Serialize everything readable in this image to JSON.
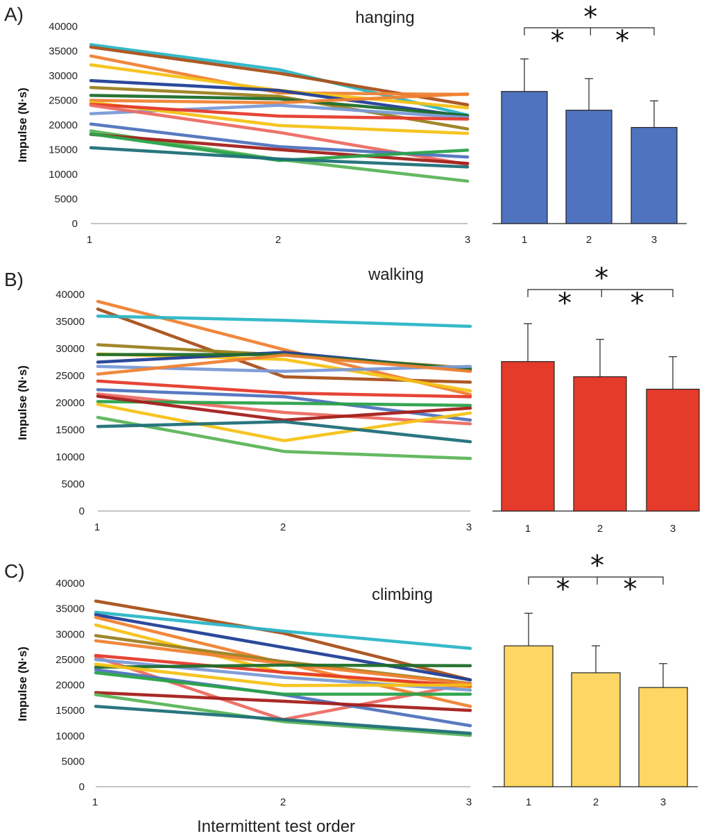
{
  "xlabel": "Intermittent test order",
  "panels": [
    {
      "label": "A)",
      "title": "hanging",
      "ylabel": "Impulse (N·s)",
      "yticks": [
        "0",
        "5000",
        "10000",
        "15000",
        "20000",
        "25000",
        "30000",
        "35000",
        "40000"
      ],
      "xticks": [
        "1",
        "2",
        "3"
      ],
      "bar_color": "#4f73be",
      "significance": [
        "*",
        "*",
        "*"
      ]
    },
    {
      "label": "B)",
      "title": "walking",
      "ylabel": "Impulse  (N·s)",
      "yticks": [
        "0",
        "5000",
        "10000",
        "15000",
        "20000",
        "25000",
        "30000",
        "35000",
        "40000"
      ],
      "xticks": [
        "1",
        "2",
        "3"
      ],
      "bar_color": "#e53b2b",
      "significance": [
        "*",
        "*",
        "*"
      ]
    },
    {
      "label": "C)",
      "title": "climbing",
      "ylabel": "Impulse (N·s)",
      "yticks": [
        "0",
        "5000",
        "10000",
        "15000",
        "20000",
        "25000",
        "30000",
        "35000",
        "40000"
      ],
      "xticks": [
        "1",
        "2",
        "3"
      ],
      "bar_color": "#fdd663",
      "significance": [
        "*",
        "*",
        "*"
      ]
    }
  ],
  "chart_data": [
    {
      "type": "line",
      "title": "hanging",
      "ylabel": "Impulse (N·s)",
      "xlabel": "Intermittent test order",
      "x": [
        1,
        2,
        3
      ],
      "ylim": [
        0,
        40000
      ],
      "series": [
        {
          "color": "#2bb6c6",
          "values": [
            36300,
            31200,
            22000
          ]
        },
        {
          "color": "#a9501a",
          "values": [
            35800,
            30500,
            24100
          ]
        },
        {
          "color": "#ef8233",
          "values": [
            34000,
            26500,
            26200
          ]
        },
        {
          "color": "#f5c217",
          "values": [
            32200,
            27000,
            23500
          ]
        },
        {
          "color": "#213f97",
          "values": [
            29000,
            27000,
            21700
          ]
        },
        {
          "color": "#9c8120",
          "values": [
            27600,
            25800,
            19200
          ]
        },
        {
          "color": "#1f6d2a",
          "values": [
            26000,
            25300,
            21900
          ]
        },
        {
          "color": "#ef8233",
          "values": [
            25000,
            24500,
            26300
          ]
        },
        {
          "color": "#7a9ad6",
          "values": [
            22300,
            24000,
            21500
          ]
        },
        {
          "color": "#f5c217",
          "values": [
            24600,
            19900,
            18300
          ]
        },
        {
          "color": "#e53b2b",
          "values": [
            24200,
            21800,
            21200
          ]
        },
        {
          "color": "#ec6b63",
          "values": [
            24000,
            18500,
            12000
          ]
        },
        {
          "color": "#4f73be",
          "values": [
            20200,
            15600,
            13500
          ]
        },
        {
          "color": "#5cb55a",
          "values": [
            18800,
            13000,
            8600
          ]
        },
        {
          "color": "#a4201b",
          "values": [
            18100,
            15000,
            12200
          ]
        },
        {
          "color": "#2aa24a",
          "values": [
            18200,
            12800,
            14900
          ]
        },
        {
          "color": "#1f6f78",
          "values": [
            15400,
            13100,
            11500
          ]
        }
      ]
    },
    {
      "type": "bar",
      "title": "hanging",
      "categories": [
        "1",
        "2",
        "3"
      ],
      "values": [
        26800,
        23000,
        19500
      ],
      "errors": [
        6600,
        6400,
        5400
      ],
      "ylim": [
        0,
        40000
      ],
      "significance": [
        [
          "1",
          "3",
          "*"
        ],
        [
          "1",
          "2",
          "*"
        ],
        [
          "2",
          "3",
          "*"
        ]
      ]
    },
    {
      "type": "line",
      "title": "walking",
      "ylabel": "Impulse  (N·s)",
      "xlabel": "Intermittent test order",
      "x": [
        1,
        2,
        3
      ],
      "ylim": [
        0,
        40000
      ],
      "series": [
        {
          "color": "#ef8233",
          "values": [
            38700,
            29800,
            21500
          ]
        },
        {
          "color": "#a9501a",
          "values": [
            37300,
            24800,
            23800
          ]
        },
        {
          "color": "#2bb6c6",
          "values": [
            36000,
            35200,
            34100
          ]
        },
        {
          "color": "#9c8120",
          "values": [
            30700,
            28800,
            26400
          ]
        },
        {
          "color": "#f5c217",
          "values": [
            29000,
            28000,
            22200
          ]
        },
        {
          "color": "#213f97",
          "values": [
            27500,
            29300,
            26000
          ]
        },
        {
          "color": "#1f6d2a",
          "values": [
            28900,
            28900,
            26200
          ]
        },
        {
          "color": "#7a9ad6",
          "values": [
            26700,
            25800,
            26700
          ]
        },
        {
          "color": "#ef8233",
          "values": [
            25300,
            28800,
            25800
          ]
        },
        {
          "color": "#e53b2b",
          "values": [
            24000,
            21800,
            21100
          ]
        },
        {
          "color": "#4f73be",
          "values": [
            22400,
            21100,
            16800
          ]
        },
        {
          "color": "#ec6b63",
          "values": [
            21600,
            18200,
            16100
          ]
        },
        {
          "color": "#2aa24a",
          "values": [
            20200,
            19900,
            19500
          ]
        },
        {
          "color": "#a4201b",
          "values": [
            21200,
            16800,
            19000
          ]
        },
        {
          "color": "#f5c217",
          "values": [
            19700,
            13000,
            18100
          ]
        },
        {
          "color": "#5cb55a",
          "values": [
            17300,
            11000,
            9700
          ]
        },
        {
          "color": "#1f6f78",
          "values": [
            15600,
            16500,
            12800
          ]
        }
      ]
    },
    {
      "type": "bar",
      "title": "walking",
      "categories": [
        "1",
        "2",
        "3"
      ],
      "values": [
        27600,
        24800,
        22500
      ],
      "errors": [
        7000,
        6900,
        6000
      ],
      "ylim": [
        0,
        40000
      ],
      "significance": [
        [
          "1",
          "3",
          "*"
        ],
        [
          "1",
          "2",
          "*"
        ],
        [
          "2",
          "3",
          "*"
        ]
      ]
    },
    {
      "type": "line",
      "title": "climbing",
      "ylabel": "Impulse (N·s)",
      "xlabel": "Intermittent test order",
      "x": [
        1,
        2,
        3
      ],
      "ylim": [
        0,
        40000
      ],
      "series": [
        {
          "color": "#a9501a",
          "values": [
            36500,
            30200,
            21000
          ]
        },
        {
          "color": "#2bb6c6",
          "values": [
            34300,
            30600,
            27200
          ]
        },
        {
          "color": "#213f97",
          "values": [
            33800,
            27400,
            21000
          ]
        },
        {
          "color": "#ef8233",
          "values": [
            33300,
            24300,
            15800
          ]
        },
        {
          "color": "#f5c217",
          "values": [
            31800,
            22400,
            19600
          ]
        },
        {
          "color": "#9c8120",
          "values": [
            29700,
            24600,
            20300
          ]
        },
        {
          "color": "#ef8233",
          "values": [
            28700,
            24200,
            20200
          ]
        },
        {
          "color": "#ec6b63",
          "values": [
            25500,
            13200,
            20300
          ]
        },
        {
          "color": "#e53b2b",
          "values": [
            25800,
            22500,
            19800
          ]
        },
        {
          "color": "#7a9ad6",
          "values": [
            25000,
            21500,
            19000
          ]
        },
        {
          "color": "#1f6d2a",
          "values": [
            23500,
            23900,
            23800
          ]
        },
        {
          "color": "#f5c217",
          "values": [
            24100,
            19900,
            20000
          ]
        },
        {
          "color": "#4f73be",
          "values": [
            23000,
            18100,
            12000
          ]
        },
        {
          "color": "#2aa24a",
          "values": [
            22400,
            18200,
            18200
          ]
        },
        {
          "color": "#a4201b",
          "values": [
            18500,
            16800,
            15000
          ]
        },
        {
          "color": "#5cb55a",
          "values": [
            18100,
            12800,
            10100
          ]
        },
        {
          "color": "#1f6f78",
          "values": [
            15800,
            13200,
            10500
          ]
        }
      ]
    },
    {
      "type": "bar",
      "title": "climbing",
      "categories": [
        "1",
        "2",
        "3"
      ],
      "values": [
        27700,
        22400,
        19500
      ],
      "errors": [
        6400,
        5300,
        4700
      ],
      "ylim": [
        0,
        40000
      ],
      "significance": [
        [
          "1",
          "3",
          "*"
        ],
        [
          "1",
          "2",
          "*"
        ],
        [
          "2",
          "3",
          "*"
        ]
      ]
    }
  ]
}
